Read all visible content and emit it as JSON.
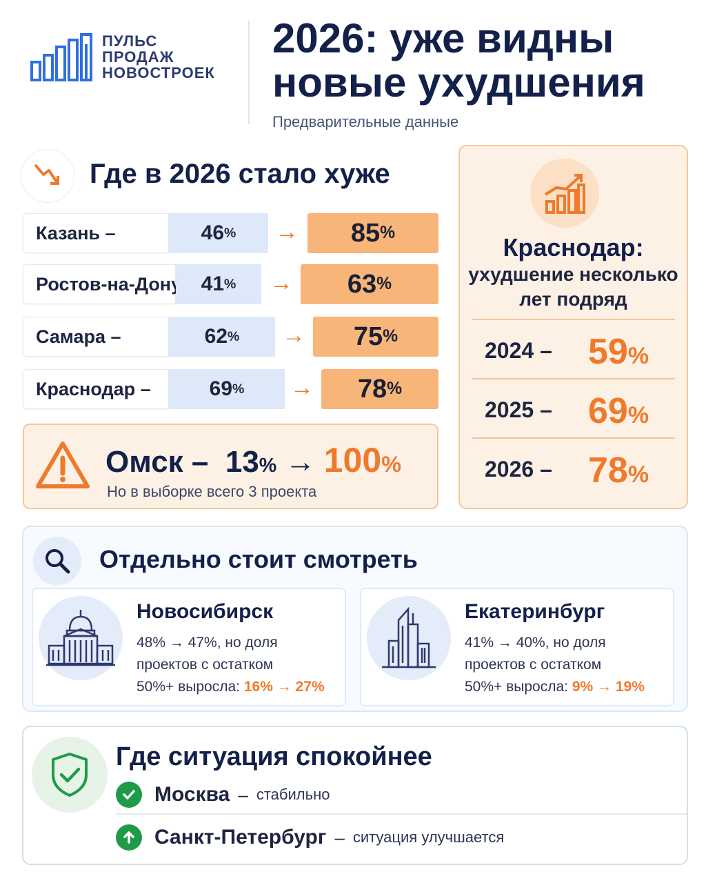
{
  "header": {
    "logo_lines": [
      "ПУЛЬС",
      "ПРОДАЖ",
      "НОВОСТРОЕК"
    ],
    "title_line1": "2026: уже видны",
    "title_line2": "новые ухудшения",
    "subtitle": "Предварительные данные"
  },
  "worse": {
    "title": "Где в 2026 стало хуже",
    "rows": [
      {
        "city": "Казань –",
        "prev": "46",
        "next": "85"
      },
      {
        "city": "Ростов-на-Дону –",
        "prev": "41",
        "next": "63"
      },
      {
        "city": "Самара –",
        "prev": "62",
        "next": "75"
      },
      {
        "city": "Краснодар –",
        "prev": "69",
        "next": "78"
      }
    ],
    "arrow": "→",
    "pct": "%",
    "omsk": {
      "city": "Омск –",
      "prev": "13",
      "next": "100",
      "note": "Но в выборке всего 3 проекта"
    }
  },
  "krasnodar": {
    "title": "Краснодар:",
    "subtitle_line1": "ухудшение несколько",
    "subtitle_line2": "лет подряд",
    "years": [
      {
        "year": "2024 –",
        "value": "59"
      },
      {
        "year": "2025 –",
        "value": "69"
      },
      {
        "year": "2026 –",
        "value": "78"
      }
    ]
  },
  "separate": {
    "title": "Отдельно стоит смотреть",
    "cards": [
      {
        "city": "Новосибирск",
        "line1": "48% → 47%, но доля",
        "line2": "проектов с остатком",
        "line3_prefix": "50%+ выросла: ",
        "line3_highlight": "16% → 27%"
      },
      {
        "city": "Екатеринбург",
        "line1": "41% → 40%, но доля",
        "line2": "проектов с остатком",
        "line3_prefix": "50%+ выросла: ",
        "line3_highlight": "9% → 19%"
      }
    ]
  },
  "calm": {
    "title": "Где ситуация спокойнее",
    "items": [
      {
        "city": "Москва",
        "dash": "–",
        "desc": "стабильно",
        "icon": "check-icon"
      },
      {
        "city": "Санкт-Петербург",
        "dash": "–",
        "desc": "ситуация улучшается",
        "icon": "arrow-up-icon"
      }
    ]
  },
  "colors": {
    "accent_orange": "#ee7a2c",
    "navy": "#13204a",
    "blue_logo": "#2f6fe0",
    "green": "#1e9b48"
  }
}
